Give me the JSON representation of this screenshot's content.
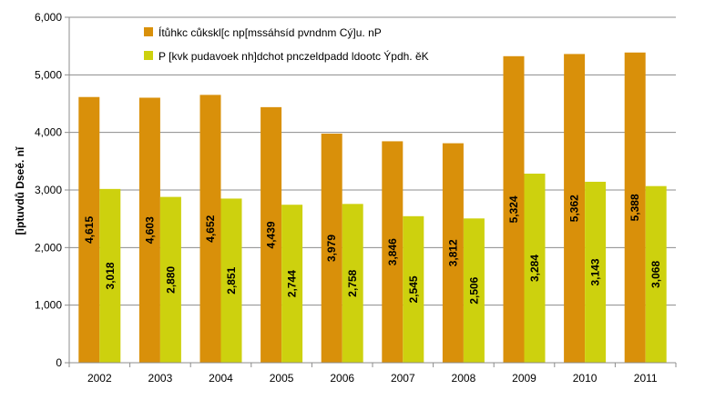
{
  "chart_data": {
    "type": "bar",
    "categories": [
      "2002",
      "2003",
      "2004",
      "2005",
      "2006",
      "2007",
      "2008",
      "2009",
      "2010",
      "2011"
    ],
    "series": [
      {
        "name": "Ítůhkc cůkskl[c np[mssáhsíd pvndnm Cý]u. nP",
        "color": "#d9900a",
        "values": [
          4615,
          4603,
          4652,
          4439,
          3979,
          3846,
          3812,
          5324,
          5362,
          5388
        ],
        "labels": [
          "4,615",
          "4,603",
          "4,652",
          "4,439",
          "3,979",
          "3,846",
          "3,812",
          "5,324",
          "5,362",
          "5,388"
        ]
      },
      {
        "name": "P [kvk pudavoek nh]dchot pnczeldpadd ldootc Ýpdh. ěK",
        "color": "#cdd10e",
        "values": [
          3018,
          2880,
          2851,
          2744,
          2758,
          2545,
          2506,
          3284,
          3143,
          3068
        ],
        "labels": [
          "3,018",
          "2,880",
          "2,851",
          "2,744",
          "2,758",
          "2,545",
          "2,506",
          "3,284",
          "3,143",
          "3,068"
        ]
      }
    ],
    "xlabel": "",
    "ylabel": "[ìptuvdů Dseě. nǐ",
    "ylim": [
      0,
      6000
    ],
    "yticks": [
      "0",
      "1,000",
      "2,000",
      "3,000",
      "4,000",
      "5,000",
      "6,000"
    ],
    "grid": true,
    "legend_position": "top-left"
  }
}
